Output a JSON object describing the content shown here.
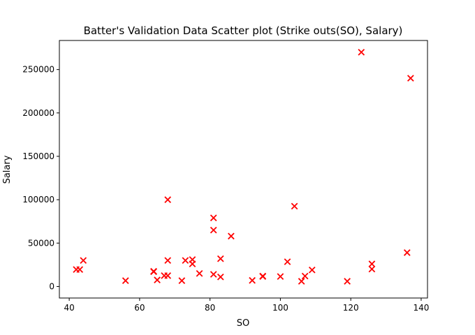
{
  "chart_data": {
    "type": "scatter",
    "title": "Batter's Validation Data Scatter plot (Strike outs(SO), Salary)",
    "xlabel": "SO",
    "ylabel": "Salary",
    "xlim": [
      37.2,
      141.8
    ],
    "ylim": [
      -13300,
      283500
    ],
    "xticks": [
      40,
      60,
      80,
      100,
      120,
      140
    ],
    "yticks": [
      0,
      50000,
      100000,
      150000,
      200000,
      250000
    ],
    "xtick_labels": [
      "40",
      "60",
      "80",
      "100",
      "120",
      "140"
    ],
    "ytick_labels": [
      "0",
      "50000",
      "100000",
      "150000",
      "200000",
      "250000"
    ],
    "grid": false,
    "marker": "x",
    "marker_color": "#ff0000",
    "points": [
      {
        "x": 42,
        "y": 19500
      },
      {
        "x": 43,
        "y": 19500
      },
      {
        "x": 44,
        "y": 30000
      },
      {
        "x": 56,
        "y": 6700
      },
      {
        "x": 64,
        "y": 17000
      },
      {
        "x": 64,
        "y": 17500
      },
      {
        "x": 65,
        "y": 7500
      },
      {
        "x": 67,
        "y": 12500
      },
      {
        "x": 68,
        "y": 12500
      },
      {
        "x": 68,
        "y": 30000
      },
      {
        "x": 68,
        "y": 100000
      },
      {
        "x": 72,
        "y": 6700
      },
      {
        "x": 73,
        "y": 30000
      },
      {
        "x": 75,
        "y": 26000
      },
      {
        "x": 75,
        "y": 31000
      },
      {
        "x": 77,
        "y": 15000
      },
      {
        "x": 81,
        "y": 14000
      },
      {
        "x": 81,
        "y": 65000
      },
      {
        "x": 81,
        "y": 79000
      },
      {
        "x": 83,
        "y": 11000
      },
      {
        "x": 83,
        "y": 32000
      },
      {
        "x": 86,
        "y": 58000
      },
      {
        "x": 92,
        "y": 7000
      },
      {
        "x": 95,
        "y": 11500
      },
      {
        "x": 95,
        "y": 12000
      },
      {
        "x": 100,
        "y": 11500
      },
      {
        "x": 102,
        "y": 28500
      },
      {
        "x": 104,
        "y": 92500
      },
      {
        "x": 106,
        "y": 6000
      },
      {
        "x": 107,
        "y": 12000
      },
      {
        "x": 109,
        "y": 19000
      },
      {
        "x": 119,
        "y": 6000
      },
      {
        "x": 123,
        "y": 270000
      },
      {
        "x": 126,
        "y": 20000
      },
      {
        "x": 126,
        "y": 26000
      },
      {
        "x": 136,
        "y": 39000
      },
      {
        "x": 137,
        "y": 240000
      }
    ]
  }
}
